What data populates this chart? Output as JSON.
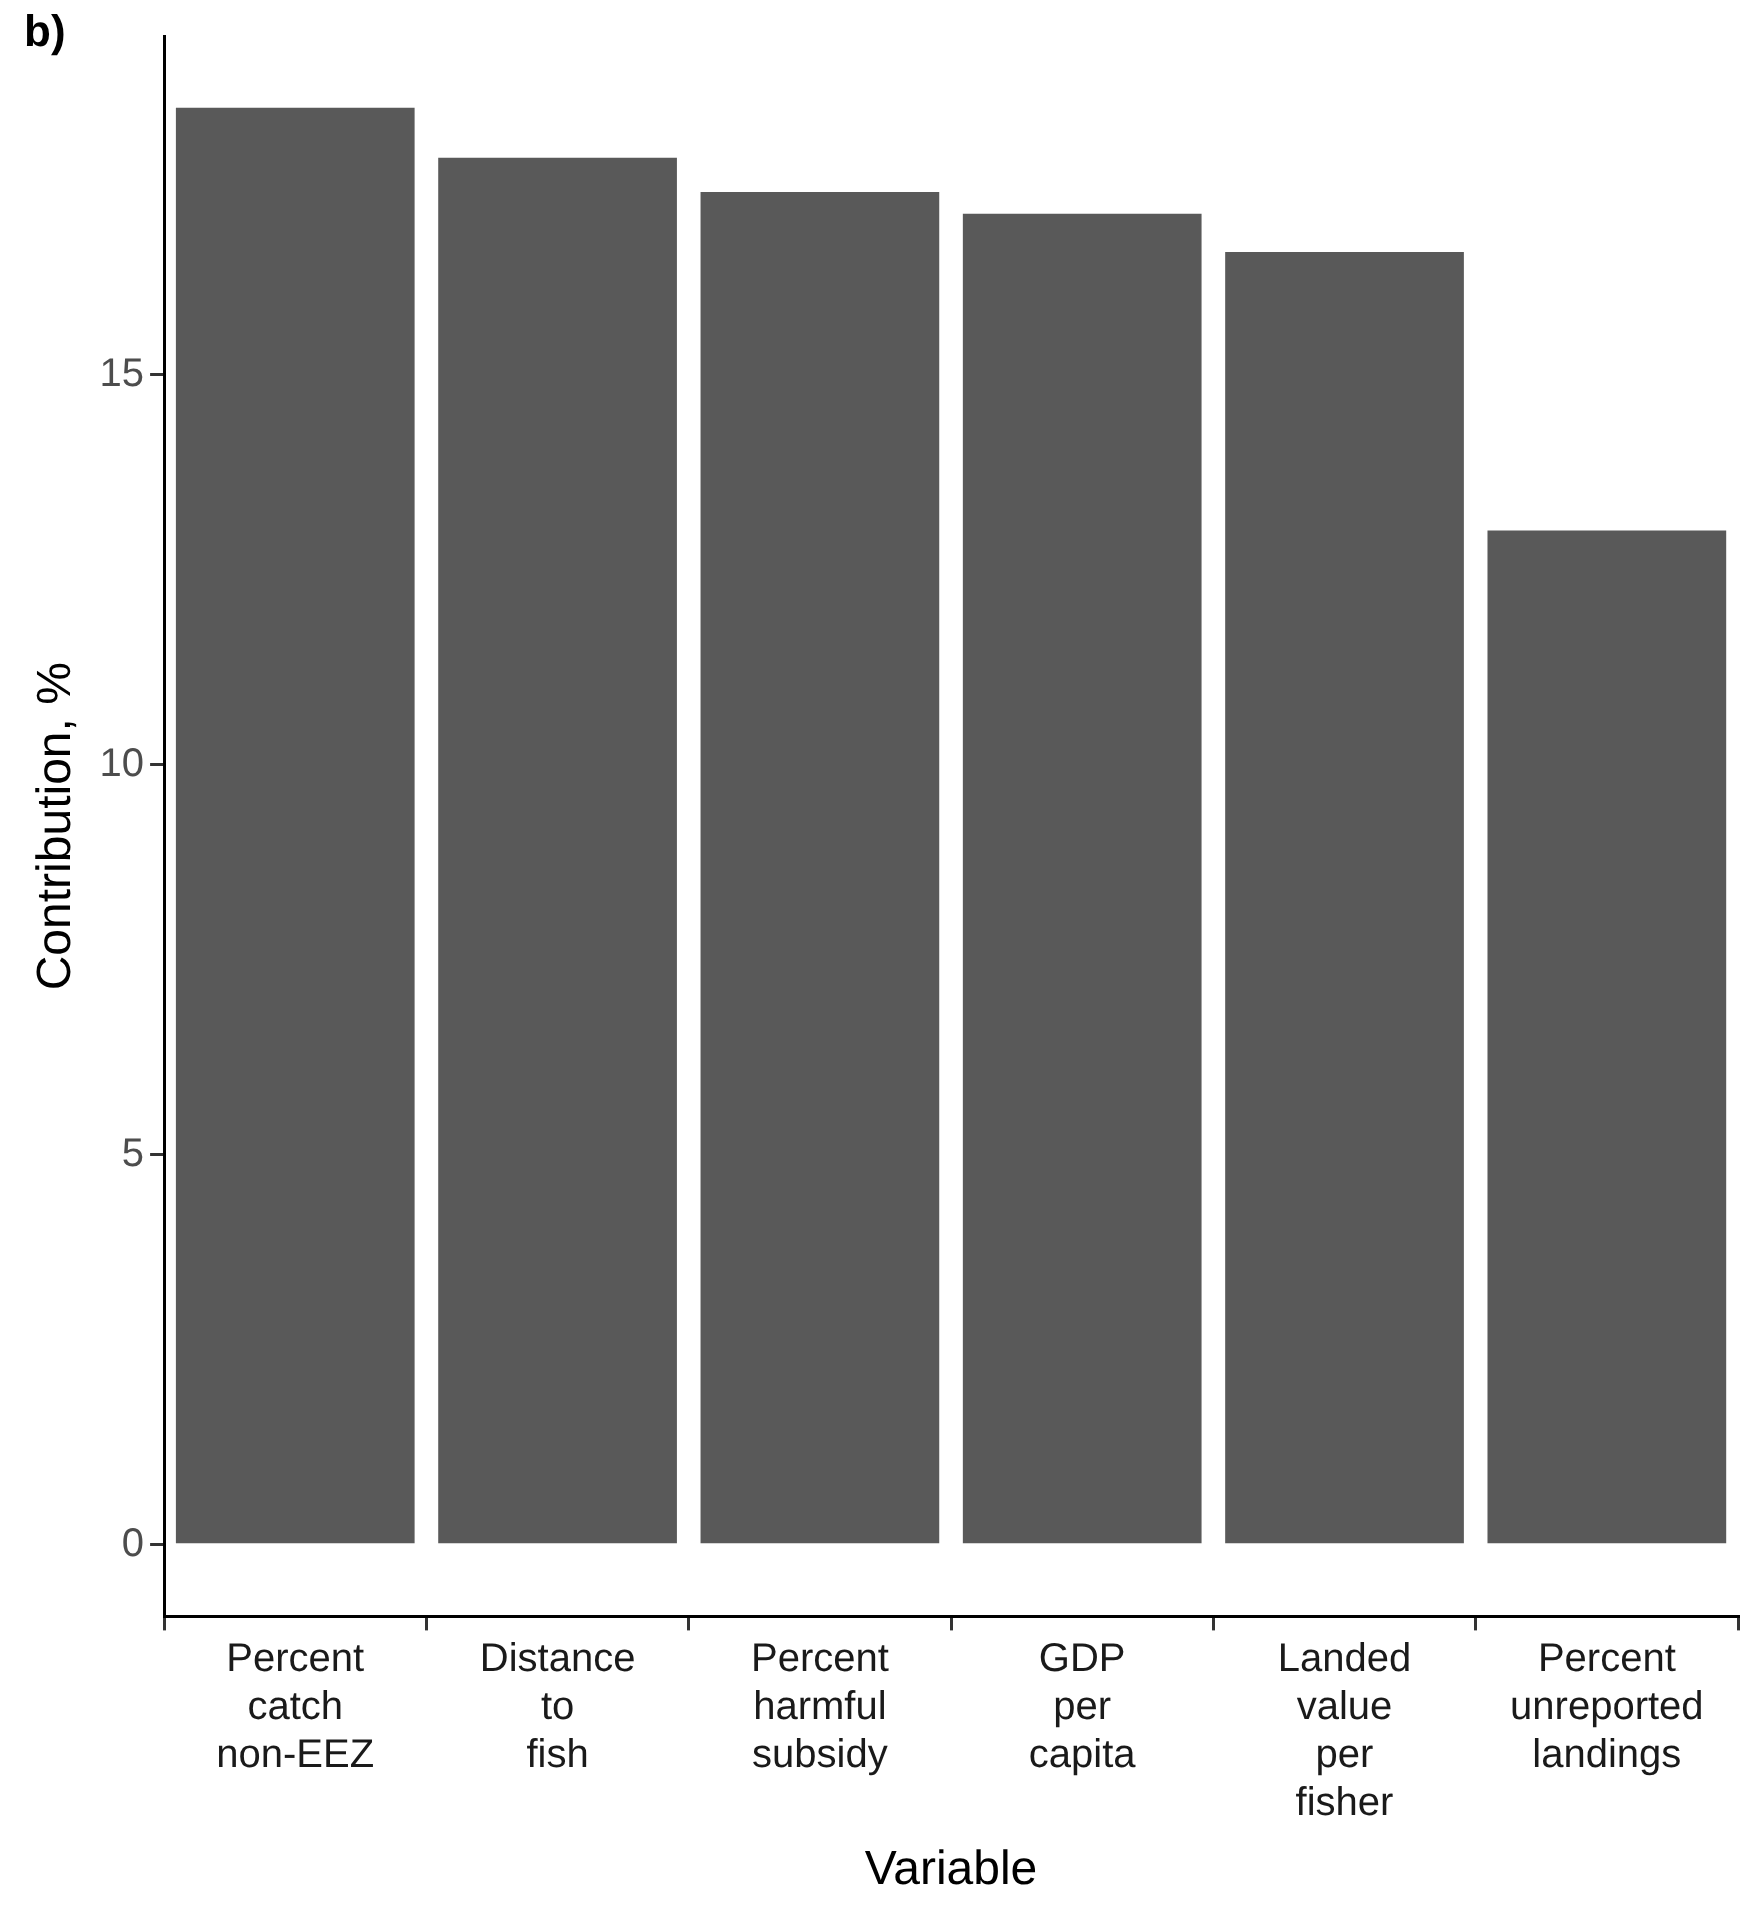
{
  "chart_data": {
    "type": "bar",
    "xlabel": "Variable",
    "ylabel": "Contribution, %",
    "annotations": [
      "b)"
    ],
    "categories": [
      "Percent catch non-EEZ",
      "Distance to fish",
      "Percent harmful subsidy",
      "GDP per capita",
      "Landed value per fisher",
      "Percent unreported landings"
    ],
    "values": [
      18.42,
      17.78,
      17.34,
      17.06,
      16.57,
      13.0
    ],
    "color": "#595959",
    "ylim": [
      -0.92,
      19.34
    ],
    "yticks": [
      0,
      5,
      10,
      15
    ],
    "grid": false,
    "legend": false
  }
}
